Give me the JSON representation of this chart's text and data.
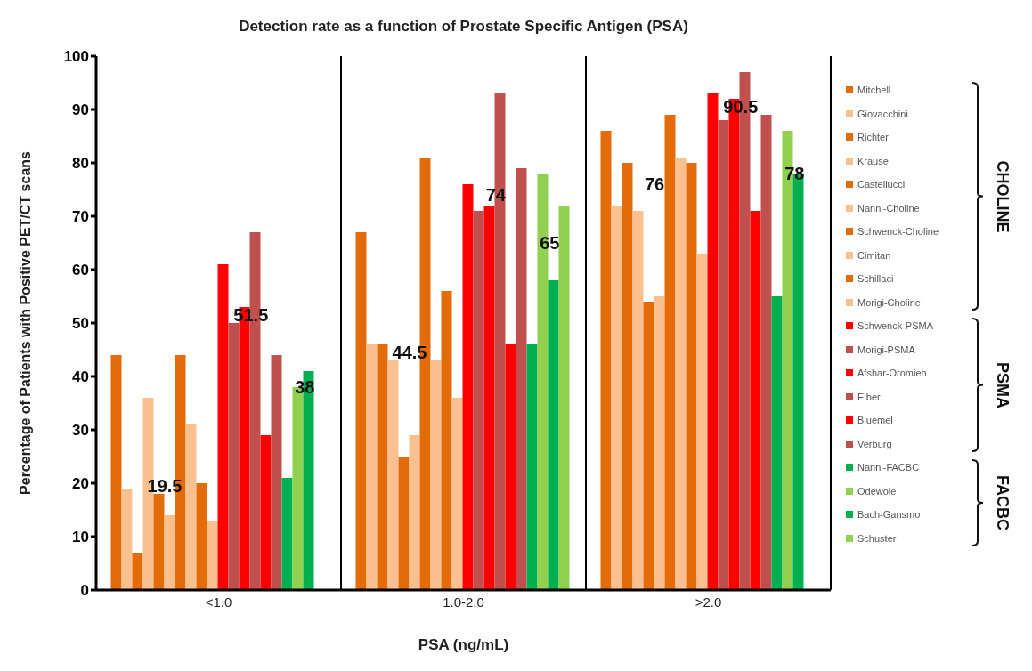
{
  "chart_data": {
    "type": "bar",
    "title": "Detection rate as a function of Prostate Specific Antigen (PSA)",
    "xlabel": "PSA (ng/mL)",
    "ylabel": "Percentage of Patients with Positive PET/CT scans",
    "categories": [
      "<1.0",
      "1.0-2.0",
      ">2.0"
    ],
    "series": [
      {
        "name": "Mitchell",
        "color": "#e36c09",
        "values": [
          44,
          67,
          86
        ]
      },
      {
        "name": "Giovacchini",
        "color": "#fac090",
        "values": [
          19,
          46,
          72
        ]
      },
      {
        "name": "Richter",
        "color": "#e36c09",
        "values": [
          7,
          46,
          80
        ]
      },
      {
        "name": "Krause",
        "color": "#fac090",
        "values": [
          36,
          43,
          71
        ]
      },
      {
        "name": "Castellucci",
        "color": "#e36c09",
        "values": [
          18,
          25,
          54
        ]
      },
      {
        "name": "Nanni-Choline",
        "color": "#fac090",
        "values": [
          14,
          29,
          55
        ]
      },
      {
        "name": "Schwenck-Choline",
        "color": "#e36c09",
        "values": [
          44,
          81,
          89
        ]
      },
      {
        "name": "Cimitan",
        "color": "#fac090",
        "values": [
          31,
          43,
          81
        ]
      },
      {
        "name": "Schillaci",
        "color": "#e36c09",
        "values": [
          20,
          56,
          80
        ]
      },
      {
        "name": "Morigi-Choline",
        "color": "#fac090",
        "values": [
          13,
          36,
          63
        ]
      },
      {
        "name": "Schwenck-PSMA",
        "color": "#ff0000",
        "values": [
          61,
          76,
          93
        ]
      },
      {
        "name": "Morigi-PSMA",
        "color": "#c0504d",
        "values": [
          50,
          71,
          88
        ]
      },
      {
        "name": "Afshar-Oromieh",
        "color": "#ff0000",
        "values": [
          53,
          72,
          92
        ]
      },
      {
        "name": "Elber",
        "color": "#c0504d",
        "values": [
          67,
          93,
          97
        ]
      },
      {
        "name": "Bluemel",
        "color": "#ff0000",
        "values": [
          29,
          46,
          71
        ]
      },
      {
        "name": "Verburg",
        "color": "#c0504d",
        "values": [
          44,
          79,
          89
        ]
      },
      {
        "name": "Nanni-FACBC",
        "color": "#00b050",
        "values": [
          21,
          46,
          55
        ]
      },
      {
        "name": "Odewole",
        "color": "#92d050",
        "values": [
          38,
          78,
          86
        ]
      },
      {
        "name": "Bach-Gansmo",
        "color": "#00b050",
        "values": [
          41,
          58,
          78
        ]
      },
      {
        "name": "Schuster",
        "color": "#92d050",
        "values": [
          null,
          72,
          null
        ]
      }
    ],
    "ylim": [
      0,
      100
    ],
    "yticks": [
      0,
      10,
      20,
      30,
      40,
      50,
      60,
      70,
      80,
      90,
      100
    ],
    "grid": "x",
    "legend": "right",
    "annotations": [
      {
        "text": "19.5",
        "x": "<1.0",
        "y": 19.5
      },
      {
        "text": "51.5",
        "x": "<1.0",
        "y": 51.5
      },
      {
        "text": "38",
        "y": 38
      },
      {
        "text": "44.5",
        "x": "1.0-2.0",
        "y": 44.5
      },
      {
        "text": "74",
        "x": "1.0-2.0",
        "y": 74
      },
      {
        "text": "65",
        "y": 65
      },
      {
        "text": "76",
        "x": ">2.0",
        "y": 76
      },
      {
        "text": "90.5",
        "x": ">2.0",
        "y": 90.5
      },
      {
        "text": "78",
        "y": 78
      },
      "CHOLINE",
      "PSMA",
      "FACBC"
    ]
  }
}
